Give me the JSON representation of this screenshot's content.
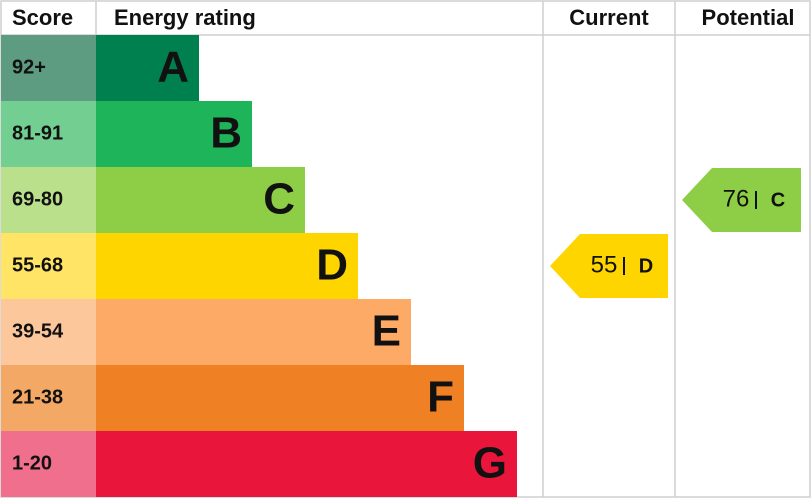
{
  "header": {
    "score": "Score",
    "rating": "Energy rating",
    "current": "Current",
    "potential": "Potential"
  },
  "rows": [
    {
      "score": "92+",
      "letter": "A"
    },
    {
      "score": "81-91",
      "letter": "B"
    },
    {
      "score": "69-80",
      "letter": "C"
    },
    {
      "score": "55-68",
      "letter": "D"
    },
    {
      "score": "39-54",
      "letter": "E"
    },
    {
      "score": "21-38",
      "letter": "F"
    },
    {
      "score": "1-20",
      "letter": "G"
    }
  ],
  "current": {
    "value": 55,
    "letter": "D"
  },
  "potential": {
    "value": 76,
    "letter": "C"
  }
}
